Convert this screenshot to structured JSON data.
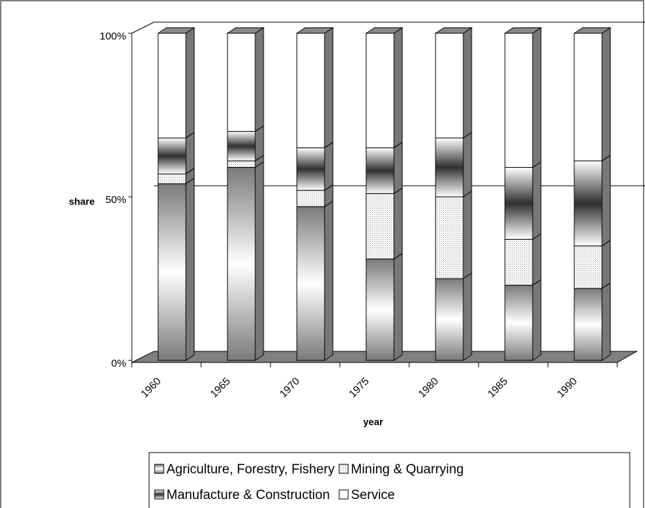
{
  "chart_data": {
    "type": "stacked_bar_3d",
    "y_label": "share",
    "x_label": "year",
    "categories": [
      "1960",
      "1965",
      "1970",
      "1975",
      "1980",
      "1985",
      "1990"
    ],
    "series": [
      {
        "name": "Agriculture, Forestry, Fishery",
        "color": "#7a7a7a",
        "values": [
          54,
          59,
          47,
          31,
          25,
          23,
          22
        ]
      },
      {
        "name": "Mining & Quarrying",
        "color": "#c8c8c8",
        "values": [
          3,
          2,
          5,
          20,
          25,
          14,
          13
        ]
      },
      {
        "name": "Manufacture & Construction",
        "color": "#303030",
        "values": [
          11,
          9,
          13,
          14,
          18,
          22,
          26
        ]
      },
      {
        "name": "Service",
        "color": "#ffffff",
        "values": [
          32,
          30,
          35,
          35,
          32,
          41,
          39
        ]
      }
    ],
    "ylim": [
      0,
      100
    ],
    "yticks": [
      {
        "value": 0,
        "label": "0%"
      },
      {
        "value": 50,
        "label": "50%"
      },
      {
        "value": 100,
        "label": "100%"
      }
    ],
    "grid": true
  }
}
